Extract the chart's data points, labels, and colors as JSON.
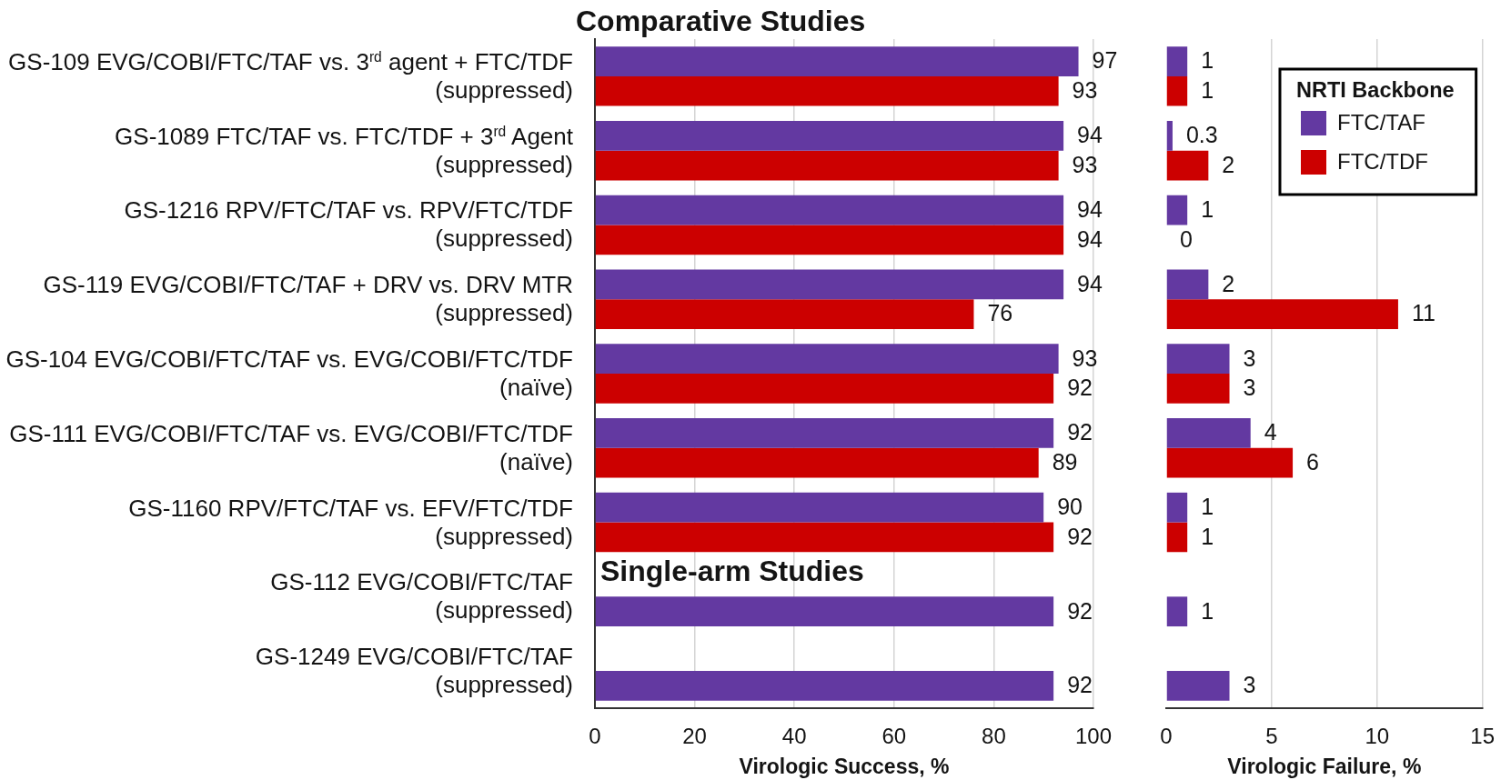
{
  "chart_data": [
    {
      "type": "bar",
      "orientation": "horizontal",
      "categories": [
        "GS-109 EVG/COBI/FTC/TAF vs. 3$^{rd}$ agent + FTC/TDF\n(suppressed)",
        "GS-1089 FTC/TAF vs. FTC/TDF + 3$^{rd}$ Agent\n(suppressed)",
        "GS-1216 RPV/FTC/TAF vs. RPV/FTC/TDF\n(suppressed)",
        "GS-119 EVG/COBI/FTC/TAF + DRV vs. DRV MTR\n(suppressed)",
        "GS-104 EVG/COBI/FTC/TAF vs. EVG/COBI/FTC/TDF\n(naïve)",
        "GS-111 EVG/COBI/FTC/TAF vs. EVG/COBI/FTC/TDF\n(naïve)",
        "GS-1160 RPV/FTC/TAF vs. EFV/FTC/TDF\n(suppressed)",
        "GS-112 EVG/COBI/FTC/TAF\n(suppressed)",
        "GS-1249 EVG/COBI/FTC/TAF\n(suppressed)"
      ],
      "series": [
        {
          "color": "#6339a1",
          "values": [
            97,
            94,
            94,
            94,
            93,
            92,
            90,
            92,
            92
          ]
        },
        {
          "color": "#cc0000",
          "values": [
            93,
            93,
            94,
            76,
            92,
            89,
            92,
            null,
            null
          ]
        }
      ],
      "xlabel": "Virologic Success, %",
      "xlim": [
        0,
        100
      ],
      "xticks": [
        0,
        20,
        40,
        60,
        80,
        100
      ],
      "grid": "x",
      "data_labels": true,
      "annotations": [
        "Comparative Studies",
        "Single-arm Studies"
      ]
    },
    {
      "type": "bar",
      "orientation": "horizontal",
      "categories": [
        null,
        null,
        null,
        null,
        null,
        null,
        null,
        null,
        null
      ],
      "series": [
        {
          "name": "FTC/TAF",
          "color": "#6339a1",
          "values": [
            1,
            0.3,
            1,
            2,
            3,
            4,
            1,
            1,
            3
          ]
        },
        {
          "name": "FTC/TDF",
          "color": "#cc0000",
          "values": [
            1,
            2,
            0,
            11,
            3,
            6,
            1,
            null,
            null
          ]
        }
      ],
      "xlabel": "Virologic Failure, %",
      "xlim": [
        0,
        15
      ],
      "xticks": [
        0,
        5,
        10,
        15
      ],
      "grid": "x",
      "data_labels": true,
      "legend": "top right",
      "legend_title": "NRTI Backbone",
      "tick_labels": "x"
    }
  ]
}
